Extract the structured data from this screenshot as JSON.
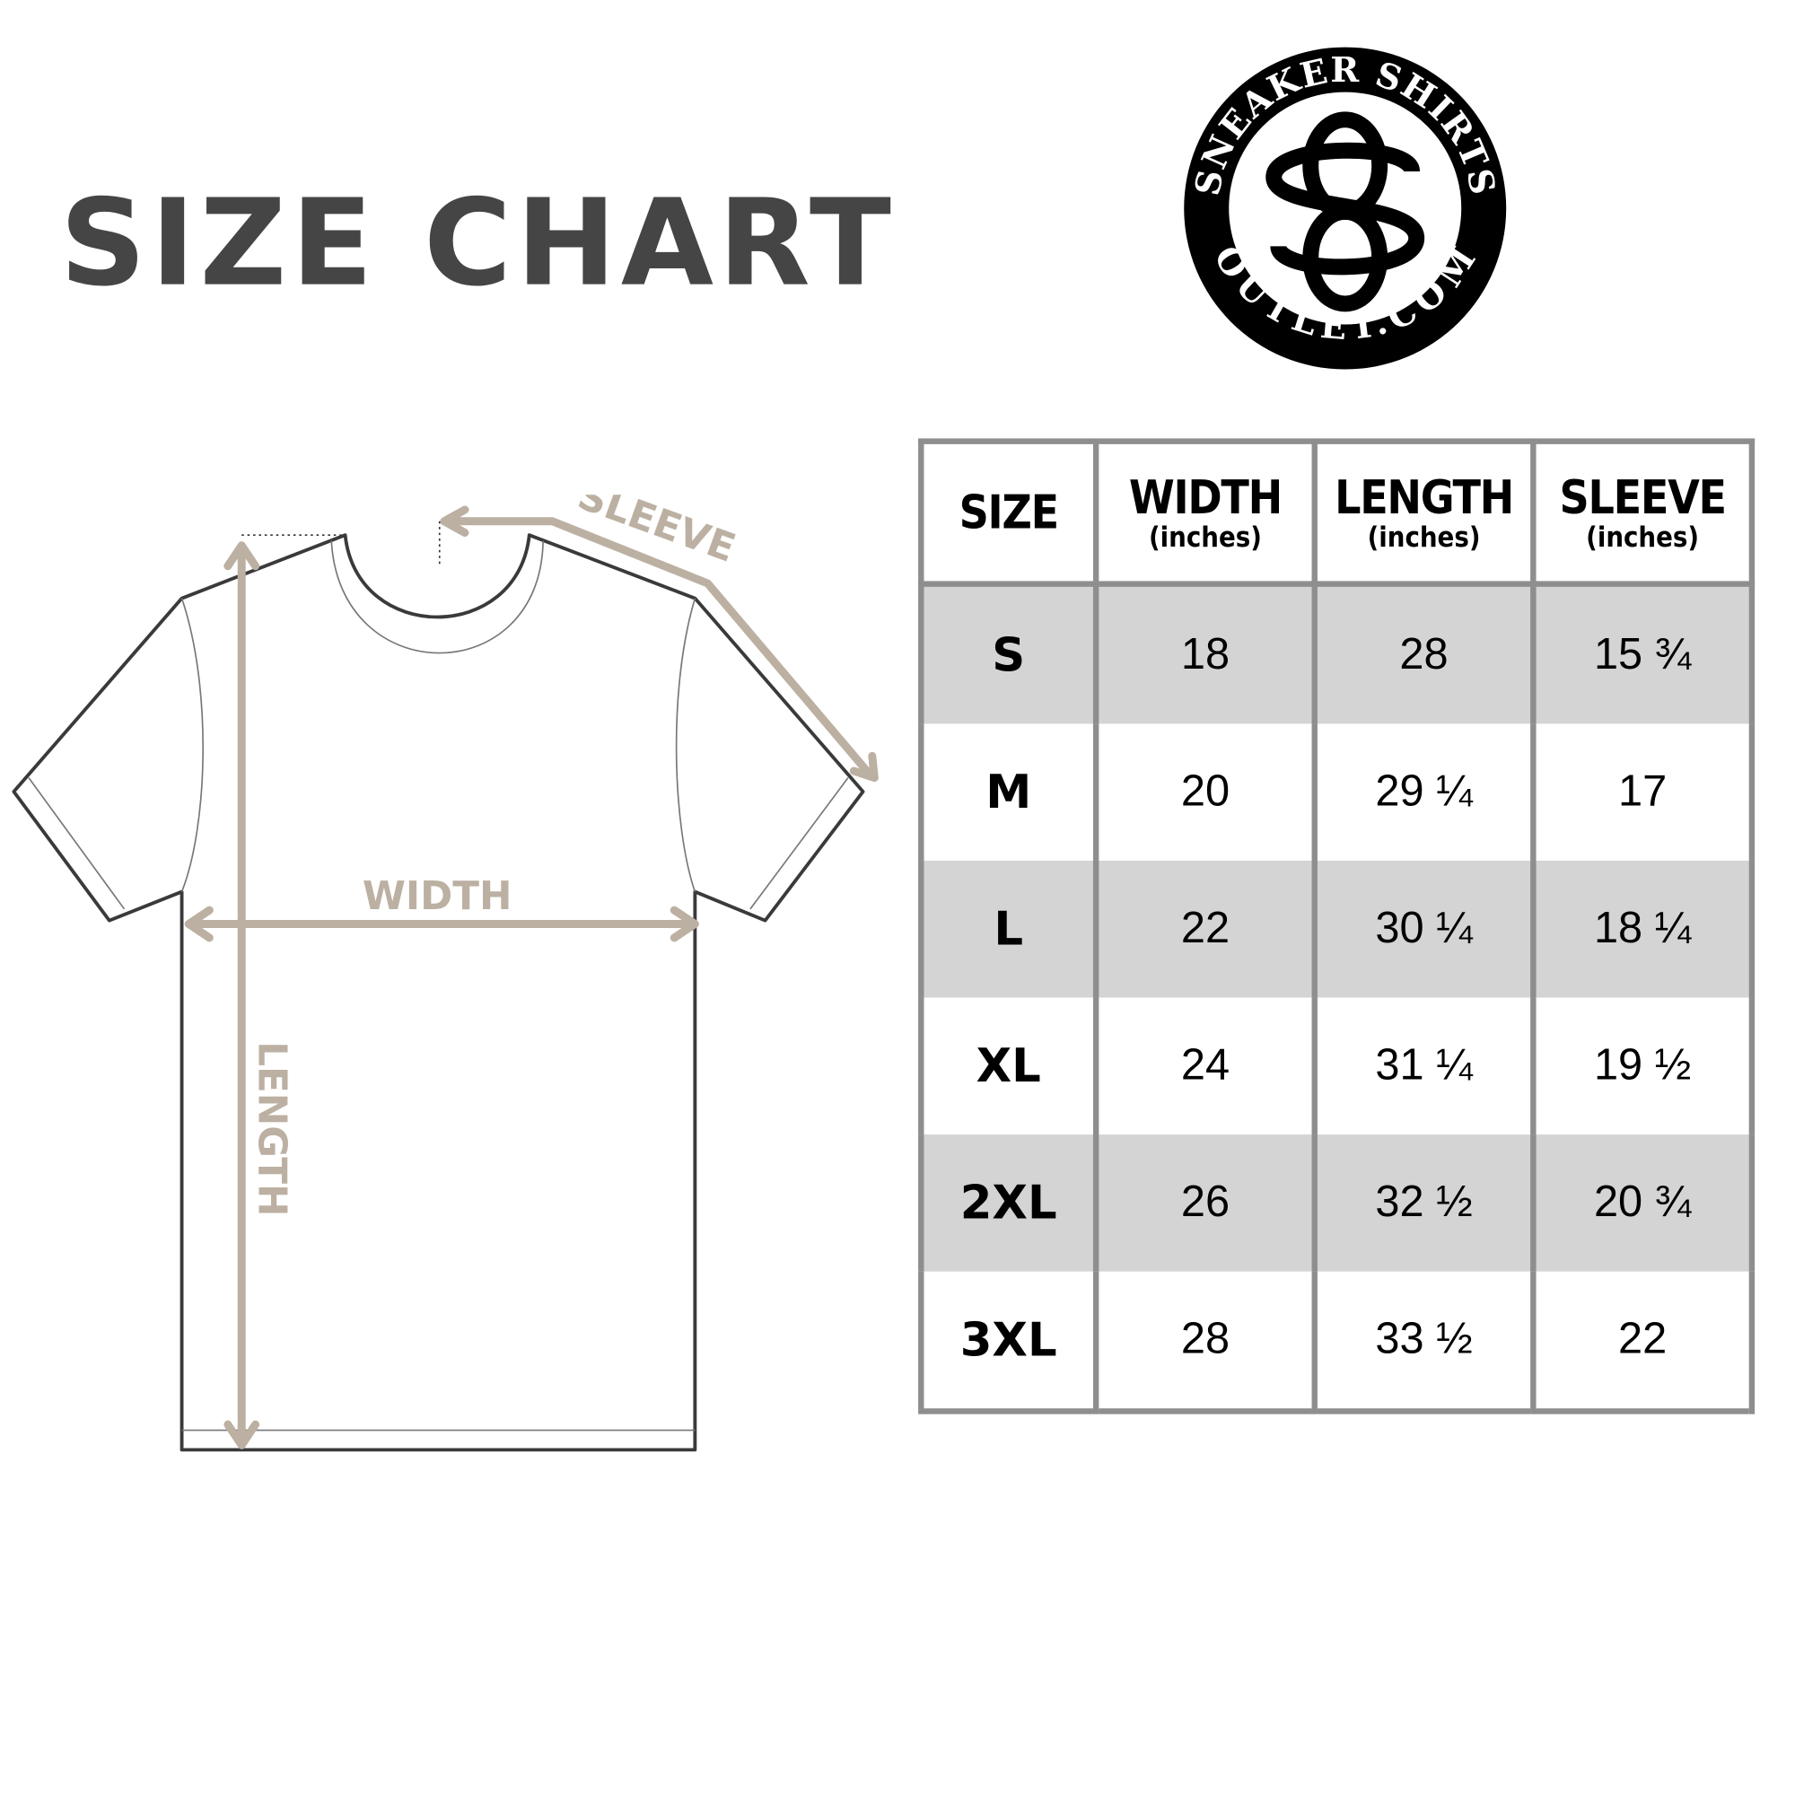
{
  "title": "SIZE CHART",
  "logo": {
    "top_text": "SNEAKER SHIRTS",
    "bottom_text": "OUTLET.COM",
    "monogram": "SO"
  },
  "diagram": {
    "sleeve_label": "SLEEVE",
    "width_label": "WIDTH",
    "length_label": "LENGTH",
    "arrow_color": "#bcb0a2"
  },
  "table": {
    "headers": [
      {
        "label": "SIZE",
        "unit": ""
      },
      {
        "label": "WIDTH",
        "unit": "(inches)"
      },
      {
        "label": "LENGTH",
        "unit": "(inches)"
      },
      {
        "label": "SLEEVE",
        "unit": "(inches)"
      }
    ],
    "rows": [
      [
        "S",
        "18",
        "28",
        "15 ¾"
      ],
      [
        "M",
        "20",
        "29 ¼",
        "17"
      ],
      [
        "L",
        "22",
        "30 ¼",
        "18 ¼"
      ],
      [
        "XL",
        "24",
        "31 ¼",
        "19 ½"
      ],
      [
        "2XL",
        "26",
        "32 ½",
        "20 ¾"
      ],
      [
        "3XL",
        "28",
        "33 ½",
        "22"
      ]
    ],
    "shade_color": "#d4d4d4",
    "border_color": "#8e8e8e"
  }
}
